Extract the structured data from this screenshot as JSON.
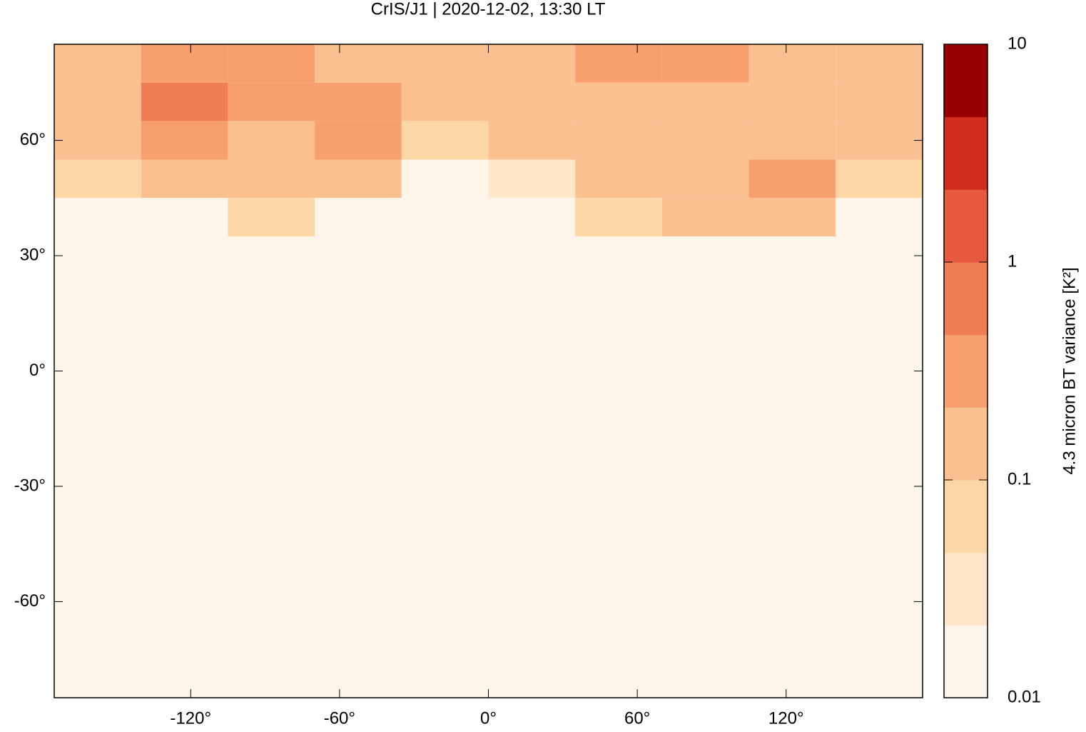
{
  "chart_data": {
    "type": "heatmap",
    "title": "CrIS/J1 | 2020-12-02, 13:30 LT",
    "xlim": [
      -175,
      175
    ],
    "ylim": [
      -85,
      85
    ],
    "xticks": [
      {
        "value": -120,
        "label": "-120°"
      },
      {
        "value": -60,
        "label": "-60°"
      },
      {
        "value": 0,
        "label": "0°"
      },
      {
        "value": 60,
        "label": "60°"
      },
      {
        "value": 120,
        "label": "120°"
      }
    ],
    "yticks": [
      {
        "value": -60,
        "label": "-60°"
      },
      {
        "value": -30,
        "label": "-30°"
      },
      {
        "value": 0,
        "label": "0°"
      },
      {
        "value": 30,
        "label": "30°"
      },
      {
        "value": 60,
        "label": "60°"
      }
    ],
    "background_value": 0.01,
    "x": [
      -157.5,
      -122.5,
      -87.5,
      -52.5,
      -17.5,
      17.5,
      52.5,
      87.5,
      122.5,
      157.5
    ],
    "y": [
      80,
      70,
      60,
      50,
      40
    ],
    "z": [
      [
        0.2,
        0.3,
        0.3,
        0.2,
        0.2,
        0.2,
        0.3,
        0.3,
        0.2,
        0.15
      ],
      [
        0.2,
        0.5,
        0.3,
        0.3,
        0.2,
        0.2,
        0.2,
        0.2,
        0.15,
        0.1
      ],
      [
        0.15,
        0.4,
        0.2,
        0.4,
        0.05,
        0.1,
        0.1,
        0.1,
        0.2,
        0.1
      ],
      [
        0.05,
        0.2,
        0.15,
        0.15,
        0.02,
        0.03,
        0.1,
        0.15,
        0.3,
        0.05
      ],
      [
        0.01,
        0.02,
        0.05,
        0.02,
        0.01,
        0.01,
        0.05,
        0.1,
        0.1,
        0.02
      ]
    ],
    "colorbar_label": "4.3 micron BT variance [K²]",
    "colorbar_log": true,
    "colorbar_lim": [
      0.01,
      10
    ],
    "colorbar_ticks": [
      0.01,
      0.1,
      1,
      10
    ],
    "colors": [
      "#fef5ea",
      "#fde7c8",
      "#fdd6a6",
      "#fbc08f",
      "#f79f6d",
      "#f07e55",
      "#e55a3f",
      "#d12d1e",
      "#990000"
    ]
  }
}
